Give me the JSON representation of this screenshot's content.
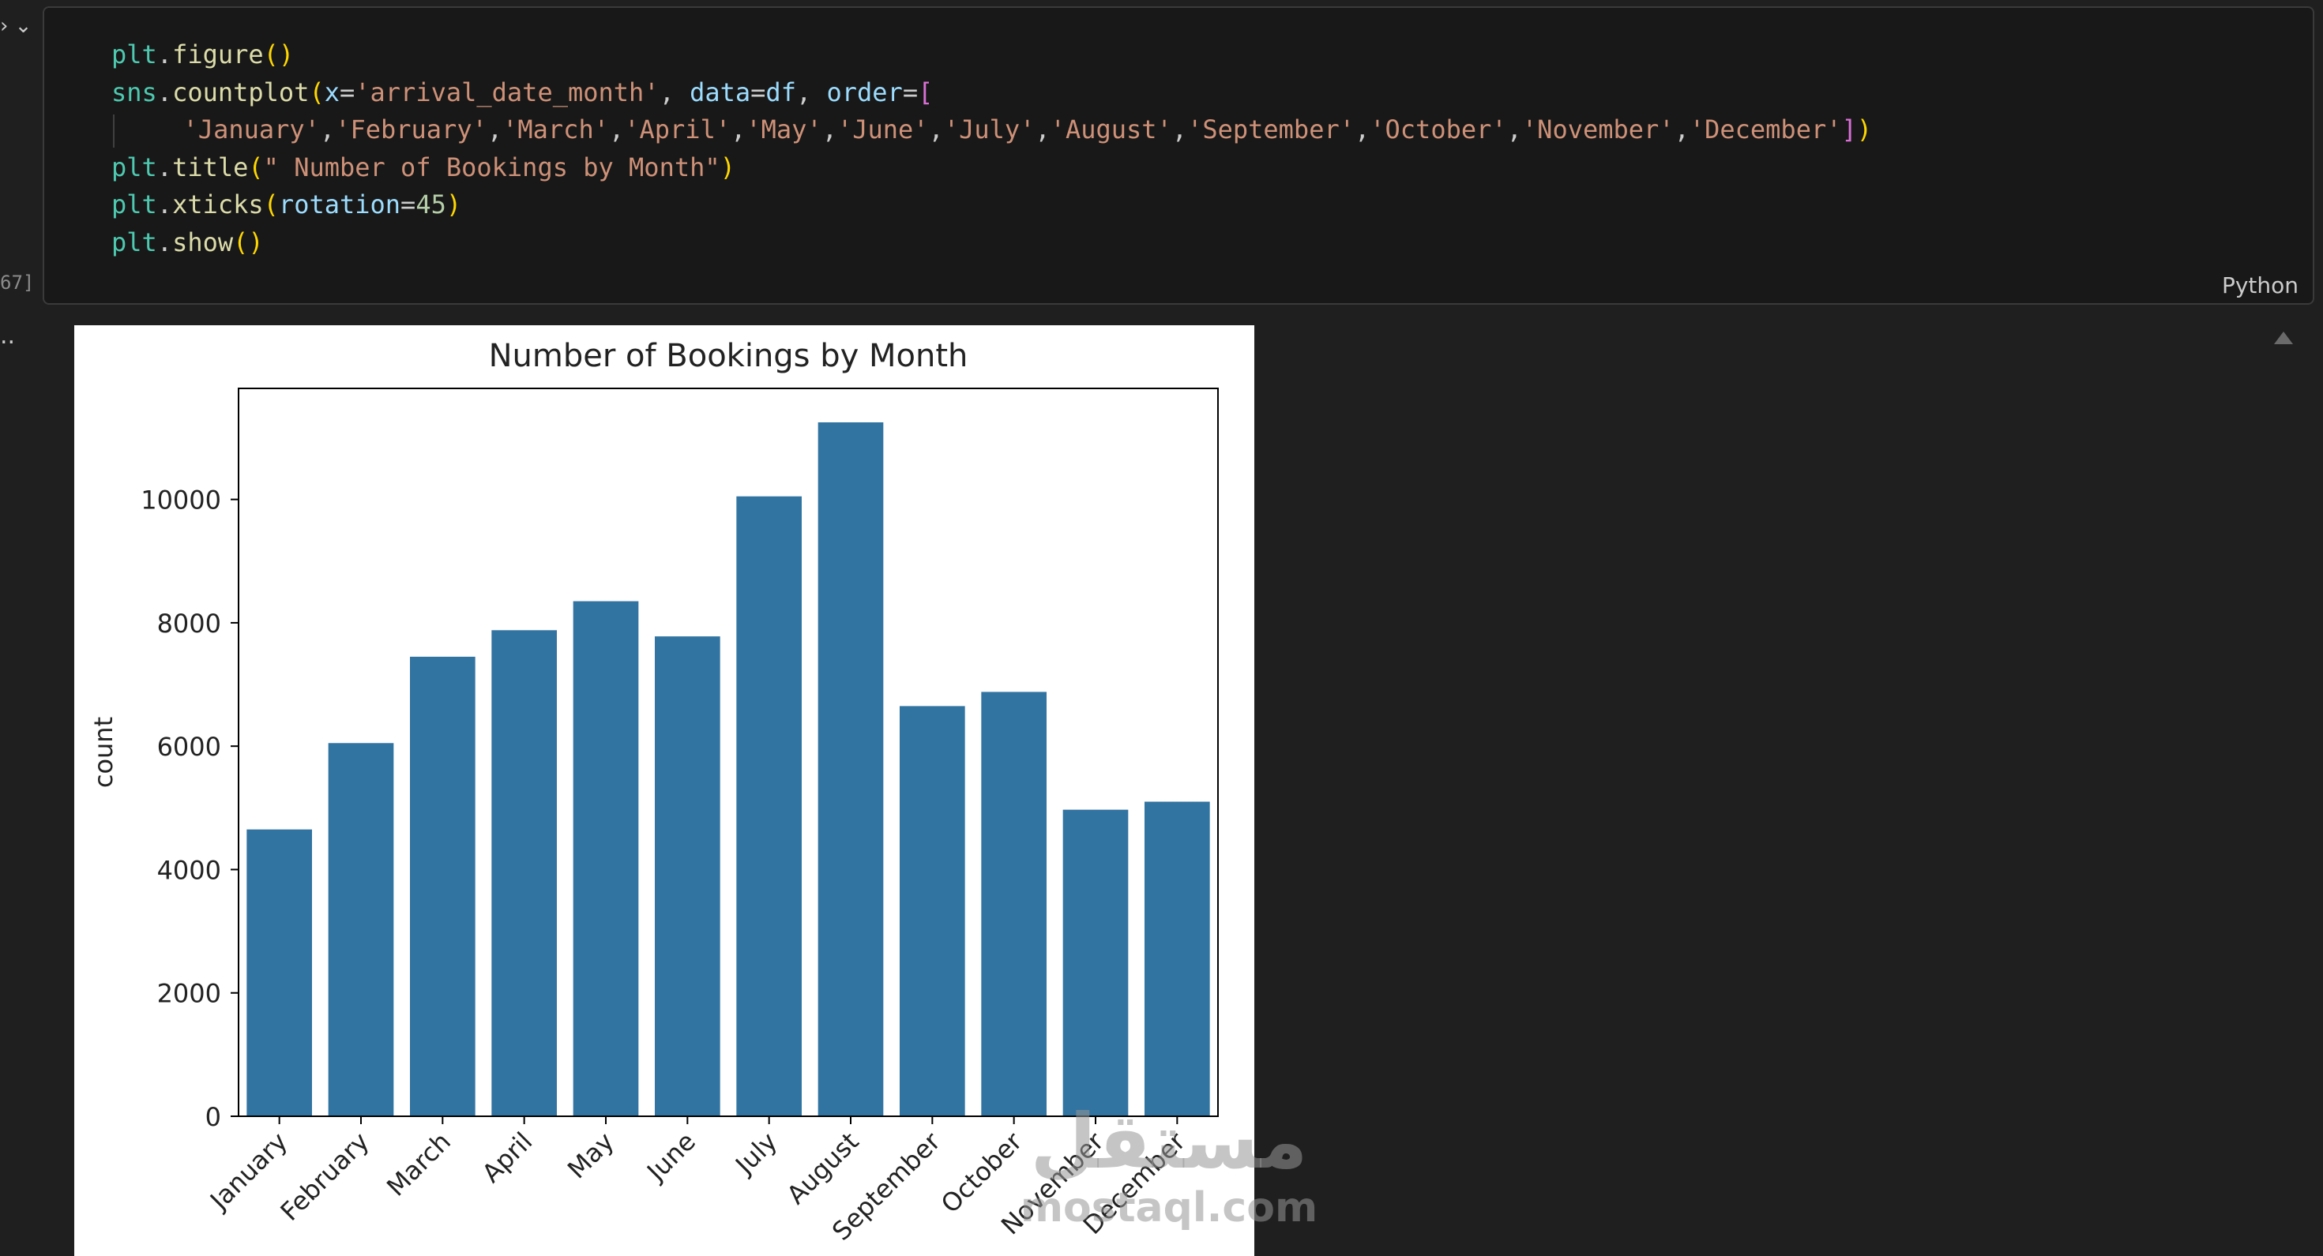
{
  "cell": {
    "execution_count": "67]",
    "language": "Python",
    "code_lines": [
      [
        {
          "t": "plt",
          "c": "id"
        },
        {
          "t": ".",
          "c": "op"
        },
        {
          "t": "figure",
          "c": "fn"
        },
        {
          "t": "()",
          "c": "p1"
        }
      ],
      [
        {
          "t": "sns",
          "c": "id"
        },
        {
          "t": ".",
          "c": "op"
        },
        {
          "t": "countplot",
          "c": "fn"
        },
        {
          "t": "(",
          "c": "p1"
        },
        {
          "t": "x",
          "c": "kw"
        },
        {
          "t": "=",
          "c": "op"
        },
        {
          "t": "'arrival_date_month'",
          "c": "str"
        },
        {
          "t": ", ",
          "c": "op"
        },
        {
          "t": "data",
          "c": "kw"
        },
        {
          "t": "=",
          "c": "op"
        },
        {
          "t": "df",
          "c": "kw"
        },
        {
          "t": ", ",
          "c": "op"
        },
        {
          "t": "order",
          "c": "kw"
        },
        {
          "t": "=",
          "c": "op"
        },
        {
          "t": "[",
          "c": "p2"
        }
      ],
      [
        {
          "t": "'January'",
          "c": "str"
        },
        {
          "t": ",",
          "c": "op"
        },
        {
          "t": "'February'",
          "c": "str"
        },
        {
          "t": ",",
          "c": "op"
        },
        {
          "t": "'March'",
          "c": "str"
        },
        {
          "t": ",",
          "c": "op"
        },
        {
          "t": "'April'",
          "c": "str"
        },
        {
          "t": ",",
          "c": "op"
        },
        {
          "t": "'May'",
          "c": "str"
        },
        {
          "t": ",",
          "c": "op"
        },
        {
          "t": "'June'",
          "c": "str"
        },
        {
          "t": ",",
          "c": "op"
        },
        {
          "t": "'July'",
          "c": "str"
        },
        {
          "t": ",",
          "c": "op"
        },
        {
          "t": "'August'",
          "c": "str"
        },
        {
          "t": ",",
          "c": "op"
        },
        {
          "t": "'September'",
          "c": "str"
        },
        {
          "t": ",",
          "c": "op"
        },
        {
          "t": "'October'",
          "c": "str"
        },
        {
          "t": ",",
          "c": "op"
        },
        {
          "t": "'November'",
          "c": "str"
        },
        {
          "t": ",",
          "c": "op"
        },
        {
          "t": "'December'",
          "c": "str"
        },
        {
          "t": "]",
          "c": "p2"
        },
        {
          "t": ")",
          "c": "p1"
        }
      ],
      [
        {
          "t": "plt",
          "c": "id"
        },
        {
          "t": ".",
          "c": "op"
        },
        {
          "t": "title",
          "c": "fn"
        },
        {
          "t": "(",
          "c": "p1"
        },
        {
          "t": "\" Number of Bookings by Month\"",
          "c": "str"
        },
        {
          "t": ")",
          "c": "p1"
        }
      ],
      [
        {
          "t": "plt",
          "c": "id"
        },
        {
          "t": ".",
          "c": "op"
        },
        {
          "t": "xticks",
          "c": "fn"
        },
        {
          "t": "(",
          "c": "p1"
        },
        {
          "t": "rotation",
          "c": "kw"
        },
        {
          "t": "=",
          "c": "op"
        },
        {
          "t": "45",
          "c": "num"
        },
        {
          "t": ")",
          "c": "p1"
        }
      ],
      [
        {
          "t": "plt",
          "c": "id"
        },
        {
          "t": ".",
          "c": "op"
        },
        {
          "t": "show",
          "c": "fn"
        },
        {
          "t": "()",
          "c": "p1"
        }
      ]
    ]
  },
  "chart_data": {
    "type": "bar",
    "title": "Number of Bookings by Month",
    "xlabel": "",
    "ylabel": "count",
    "categories": [
      "January",
      "February",
      "March",
      "April",
      "May",
      "June",
      "July",
      "August",
      "September",
      "October",
      "November",
      "December"
    ],
    "values": [
      4650,
      6050,
      7450,
      7880,
      8350,
      7780,
      10050,
      11250,
      6650,
      6880,
      4970,
      5100
    ],
    "ylim": [
      0,
      11800
    ],
    "yticks": [
      0,
      2000,
      4000,
      6000,
      8000,
      10000
    ],
    "bar_color": "#3274a1",
    "xtick_rotation": 45,
    "grid": false
  },
  "watermark": {
    "arabic": "مستقل",
    "latin": "mostaql.com"
  }
}
